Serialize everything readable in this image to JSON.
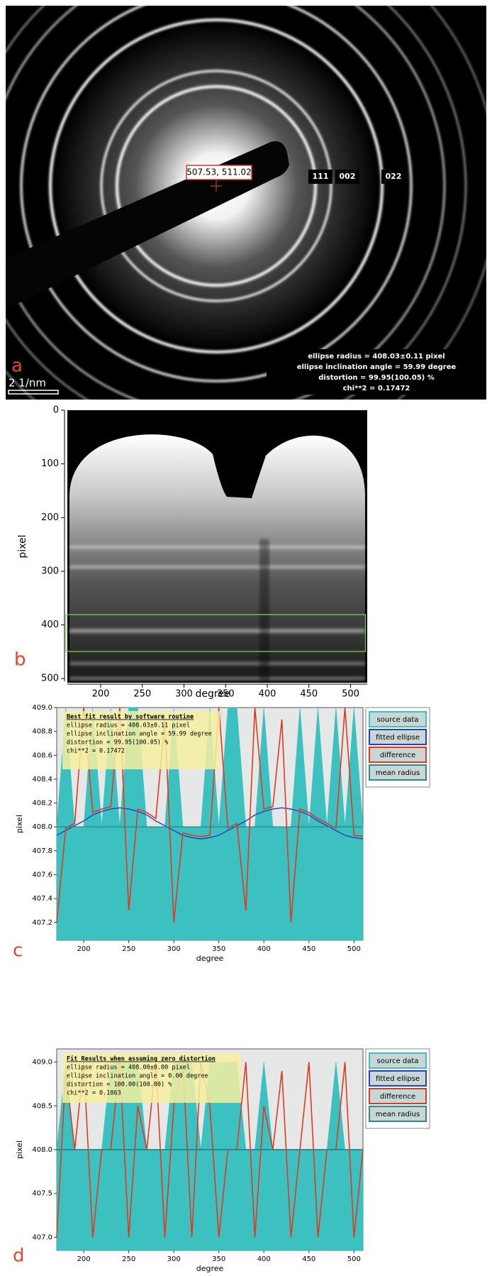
{
  "panel_a": {
    "label": "a",
    "center": "507.53, 511.02",
    "rings": [
      "111",
      "002",
      "022"
    ],
    "scale_bar": "2 1/nm",
    "info": [
      "ellipse radius = 408.03±0.11 pixel",
      "ellipse inclination angle = 59.99 degree",
      "distortion = 99.95(100.05) %",
      "chi**2 = 0.17472"
    ]
  },
  "panel_b": {
    "label": "b",
    "xlabel": "degree",
    "ylabel": "pixel",
    "xlim": [
      160,
      520
    ],
    "ylim": [
      0,
      505
    ],
    "xticks": [
      200,
      250,
      300,
      350,
      400,
      450,
      500
    ],
    "yticks": [
      0,
      100,
      200,
      300,
      400,
      500
    ]
  },
  "chart_data": [
    {
      "type": "line",
      "label": "c",
      "xlabel": "degree",
      "ylabel": "pixel",
      "xlim": [
        170,
        510
      ],
      "ylim": [
        407.05,
        409.0
      ],
      "xticks": [
        200,
        250,
        300,
        350,
        400,
        450,
        500
      ],
      "yticks": [
        407.2,
        407.4,
        407.6,
        407.8,
        {
          "value": 408.0,
          "label": "408.0"
        },
        408.2,
        408.4,
        408.6,
        408.8,
        {
          "value": 409.0,
          "label": "409.0"
        }
      ],
      "textbox": [
        "Best fit result by software routine",
        "ellipse radius = 408.03±0.11 pixel",
        "ellipse inclination angle = 59.99 degree",
        "distortion = 99.95(100.05) %",
        "chi**2 = 0.17472"
      ],
      "x": [
        170,
        180,
        190,
        200,
        210,
        220,
        230,
        240,
        250,
        260,
        270,
        280,
        290,
        300,
        310,
        320,
        330,
        340,
        350,
        360,
        370,
        380,
        390,
        400,
        410,
        420,
        430,
        440,
        450,
        460,
        470,
        480,
        490,
        500,
        510
      ],
      "series": [
        {
          "name": "source data",
          "color": "#3cc0c0",
          "values": [
            408.0,
            409.0,
            408.0,
            408.0,
            409.0,
            408.0,
            409.0,
            408.0,
            409.0,
            409.0,
            408.0,
            408.0,
            408.0,
            409.0,
            408.0,
            408.0,
            408.0,
            409.0,
            408.0,
            409.0,
            409.0,
            408.0,
            408.0,
            409.0,
            408.0,
            408.0,
            408.0,
            409.0,
            408.0,
            409.0,
            408.0,
            409.0,
            408.0,
            409.0,
            408.0
          ]
        },
        {
          "name": "fitted ellipse",
          "color": "#2a3fbf",
          "values": [
            407.93,
            407.97,
            408.01,
            408.05,
            408.1,
            408.13,
            408.15,
            408.16,
            408.15,
            408.13,
            408.1,
            408.05,
            408.01,
            407.97,
            407.93,
            407.91,
            407.9,
            407.91,
            407.93,
            407.97,
            408.01,
            408.05,
            408.1,
            408.13,
            408.15,
            408.16,
            408.15,
            408.13,
            408.1,
            408.05,
            408.01,
            407.97,
            407.93,
            407.91,
            407.9
          ]
        },
        {
          "name": "difference",
          "color": "#e03a1e",
          "values": [
            407.2,
            407.99,
            408.03,
            409.0,
            408.12,
            408.15,
            408.17,
            409.0,
            407.3,
            408.15,
            408.12,
            408.07,
            408.9,
            407.2,
            407.95,
            407.93,
            407.92,
            407.93,
            409.0,
            407.99,
            408.03,
            407.3,
            409.0,
            408.15,
            408.17,
            408.9,
            407.2,
            408.15,
            408.12,
            408.07,
            408.03,
            407.99,
            409.0,
            407.93,
            407.92
          ]
        },
        {
          "name": "mean radius",
          "color": "#2a8a8a",
          "values": [
            408.0,
            408.0,
            408.0,
            408.0,
            408.0,
            408.0,
            408.0,
            408.0,
            408.0,
            408.0,
            408.0,
            408.0,
            408.0,
            408.0,
            408.0,
            408.0,
            408.0,
            408.0,
            408.0,
            408.0,
            408.0,
            408.0,
            408.0,
            408.0,
            408.0,
            408.0,
            408.0,
            408.0,
            408.0,
            408.0,
            408.0,
            408.0,
            408.0,
            408.0,
            408.0
          ]
        }
      ]
    },
    {
      "type": "line",
      "label": "d",
      "xlabel": "degree",
      "ylabel": "pixel",
      "xlim": [
        170,
        510
      ],
      "ylim": [
        406.85,
        409.15
      ],
      "xticks": [
        200,
        250,
        300,
        350,
        400,
        450,
        500
      ],
      "yticks": [
        {
          "value": 407.0,
          "label": "407.0"
        },
        407.5,
        {
          "value": 408.0,
          "label": "408.0"
        },
        408.5,
        {
          "value": 409.0,
          "label": "409.0"
        }
      ],
      "textbox": [
        "Fit Results when assuming zero distortion",
        "ellipse radius = 408.00±0.00 pixel",
        "ellipse inclination angle = 0.00 degree",
        "distortion = 100.00(100.00) %",
        "chi**2 = 0.1863"
      ],
      "x": [
        170,
        180,
        190,
        200,
        210,
        220,
        230,
        240,
        250,
        260,
        270,
        280,
        290,
        300,
        310,
        320,
        330,
        340,
        350,
        360,
        370,
        380,
        390,
        400,
        410,
        420,
        430,
        440,
        450,
        460,
        470,
        480,
        490,
        500,
        510
      ],
      "series": [
        {
          "name": "source data",
          "color": "#3cc0c0",
          "values": [
            408.0,
            409.0,
            408.0,
            408.0,
            408.0,
            408.0,
            409.0,
            409.0,
            409.0,
            409.0,
            408.0,
            408.0,
            408.0,
            409.0,
            409.0,
            409.0,
            408.0,
            409.0,
            409.0,
            409.0,
            409.0,
            408.0,
            408.0,
            409.0,
            408.0,
            408.0,
            408.0,
            408.0,
            408.0,
            408.0,
            408.0,
            409.0,
            408.0,
            408.0,
            408.0
          ]
        },
        {
          "name": "fitted ellipse",
          "color": "#2a3fbf",
          "values": [
            408.0,
            408.0,
            408.0,
            408.0,
            408.0,
            408.0,
            408.0,
            408.0,
            408.0,
            408.0,
            408.0,
            408.0,
            408.0,
            408.0,
            408.0,
            408.0,
            408.0,
            408.0,
            408.0,
            408.0,
            408.0,
            408.0,
            408.0,
            408.0,
            408.0,
            408.0,
            408.0,
            408.0,
            408.0,
            408.0,
            408.0,
            408.0,
            408.0,
            408.0,
            408.0
          ]
        },
        {
          "name": "difference",
          "color": "#e03a1e",
          "values": [
            407.0,
            408.9,
            408.0,
            409.0,
            407.0,
            408.0,
            408.0,
            409.0,
            407.0,
            408.5,
            408.0,
            409.0,
            407.0,
            408.5,
            409.0,
            407.0,
            409.0,
            408.5,
            407.0,
            408.0,
            408.0,
            409.0,
            407.0,
            408.5,
            408.0,
            408.9,
            407.0,
            408.0,
            409.0,
            407.0,
            408.0,
            408.0,
            409.0,
            407.0,
            408.0
          ]
        },
        {
          "name": "mean radius",
          "color": "#2a8a8a",
          "values": [
            408.0,
            408.0,
            408.0,
            408.0,
            408.0,
            408.0,
            408.0,
            408.0,
            408.0,
            408.0,
            408.0,
            408.0,
            408.0,
            408.0,
            408.0,
            408.0,
            408.0,
            408.0,
            408.0,
            408.0,
            408.0,
            408.0,
            408.0,
            408.0,
            408.0,
            408.0,
            408.0,
            408.0,
            408.0,
            408.0,
            408.0,
            408.0,
            408.0,
            408.0,
            408.0
          ]
        }
      ]
    }
  ]
}
